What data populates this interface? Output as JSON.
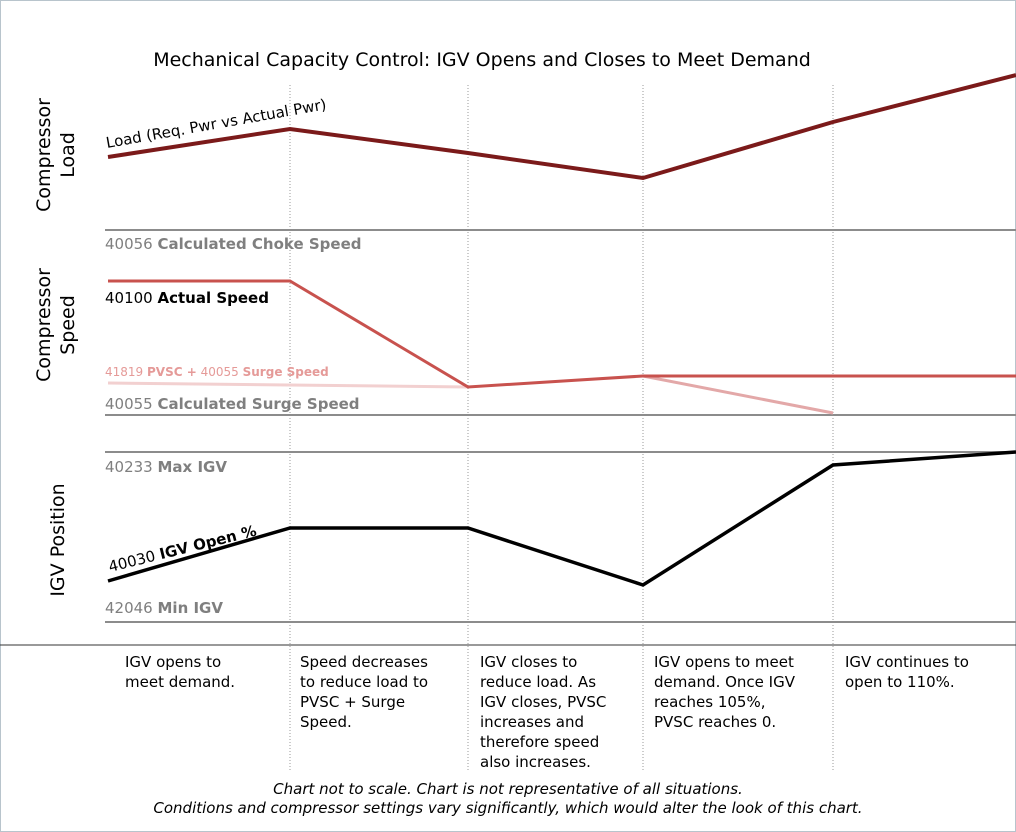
{
  "title": "Mechanical Capacity Control: IGV Opens and Closes to Meet Demand",
  "panels": [
    {
      "label": [
        "Compressor",
        "Load"
      ]
    },
    {
      "label": [
        "Compressor",
        "Speed"
      ]
    },
    {
      "label": [
        "IGV Position"
      ]
    }
  ],
  "lines": {
    "load": {
      "label": "Load (Req. Pwr vs Actual Pwr)"
    },
    "choke": {
      "code": "40056",
      "label": "Calculated Choke Speed"
    },
    "actual": {
      "code": "40100",
      "label": "Actual Speed"
    },
    "pvsc": {
      "code": "41819",
      "label": "PVSC +",
      "code2": "40055",
      "label2": "Surge Speed"
    },
    "surge": {
      "code": "40055",
      "label": "Calculated Surge Speed"
    },
    "max_igv": {
      "code": "40233",
      "label": "Max IGV"
    },
    "igv_open": {
      "code": "40030",
      "label": "IGV Open %"
    },
    "min_igv": {
      "code": "42046",
      "label": "Min IGV"
    }
  },
  "columns": [
    [
      "IGV opens to",
      "meet demand."
    ],
    [
      "Speed decreases",
      "to reduce load to",
      "PVSC + Surge",
      "Speed."
    ],
    [
      "IGV closes to",
      "reduce load.  As",
      "IGV closes, PVSC",
      "increases and",
      "therefore speed",
      "also increases."
    ],
    [
      "IGV opens to meet",
      "demand.  Once IGV",
      "reaches 105%,",
      "PVSC reaches 0."
    ],
    [
      "IGV continues to",
      "open to 110%."
    ]
  ],
  "footnote": [
    "Chart not to scale.  Chart is not representative of all situations.",
    "Conditions and compressor settings vary significantly, which would alter the look of this chart."
  ]
}
